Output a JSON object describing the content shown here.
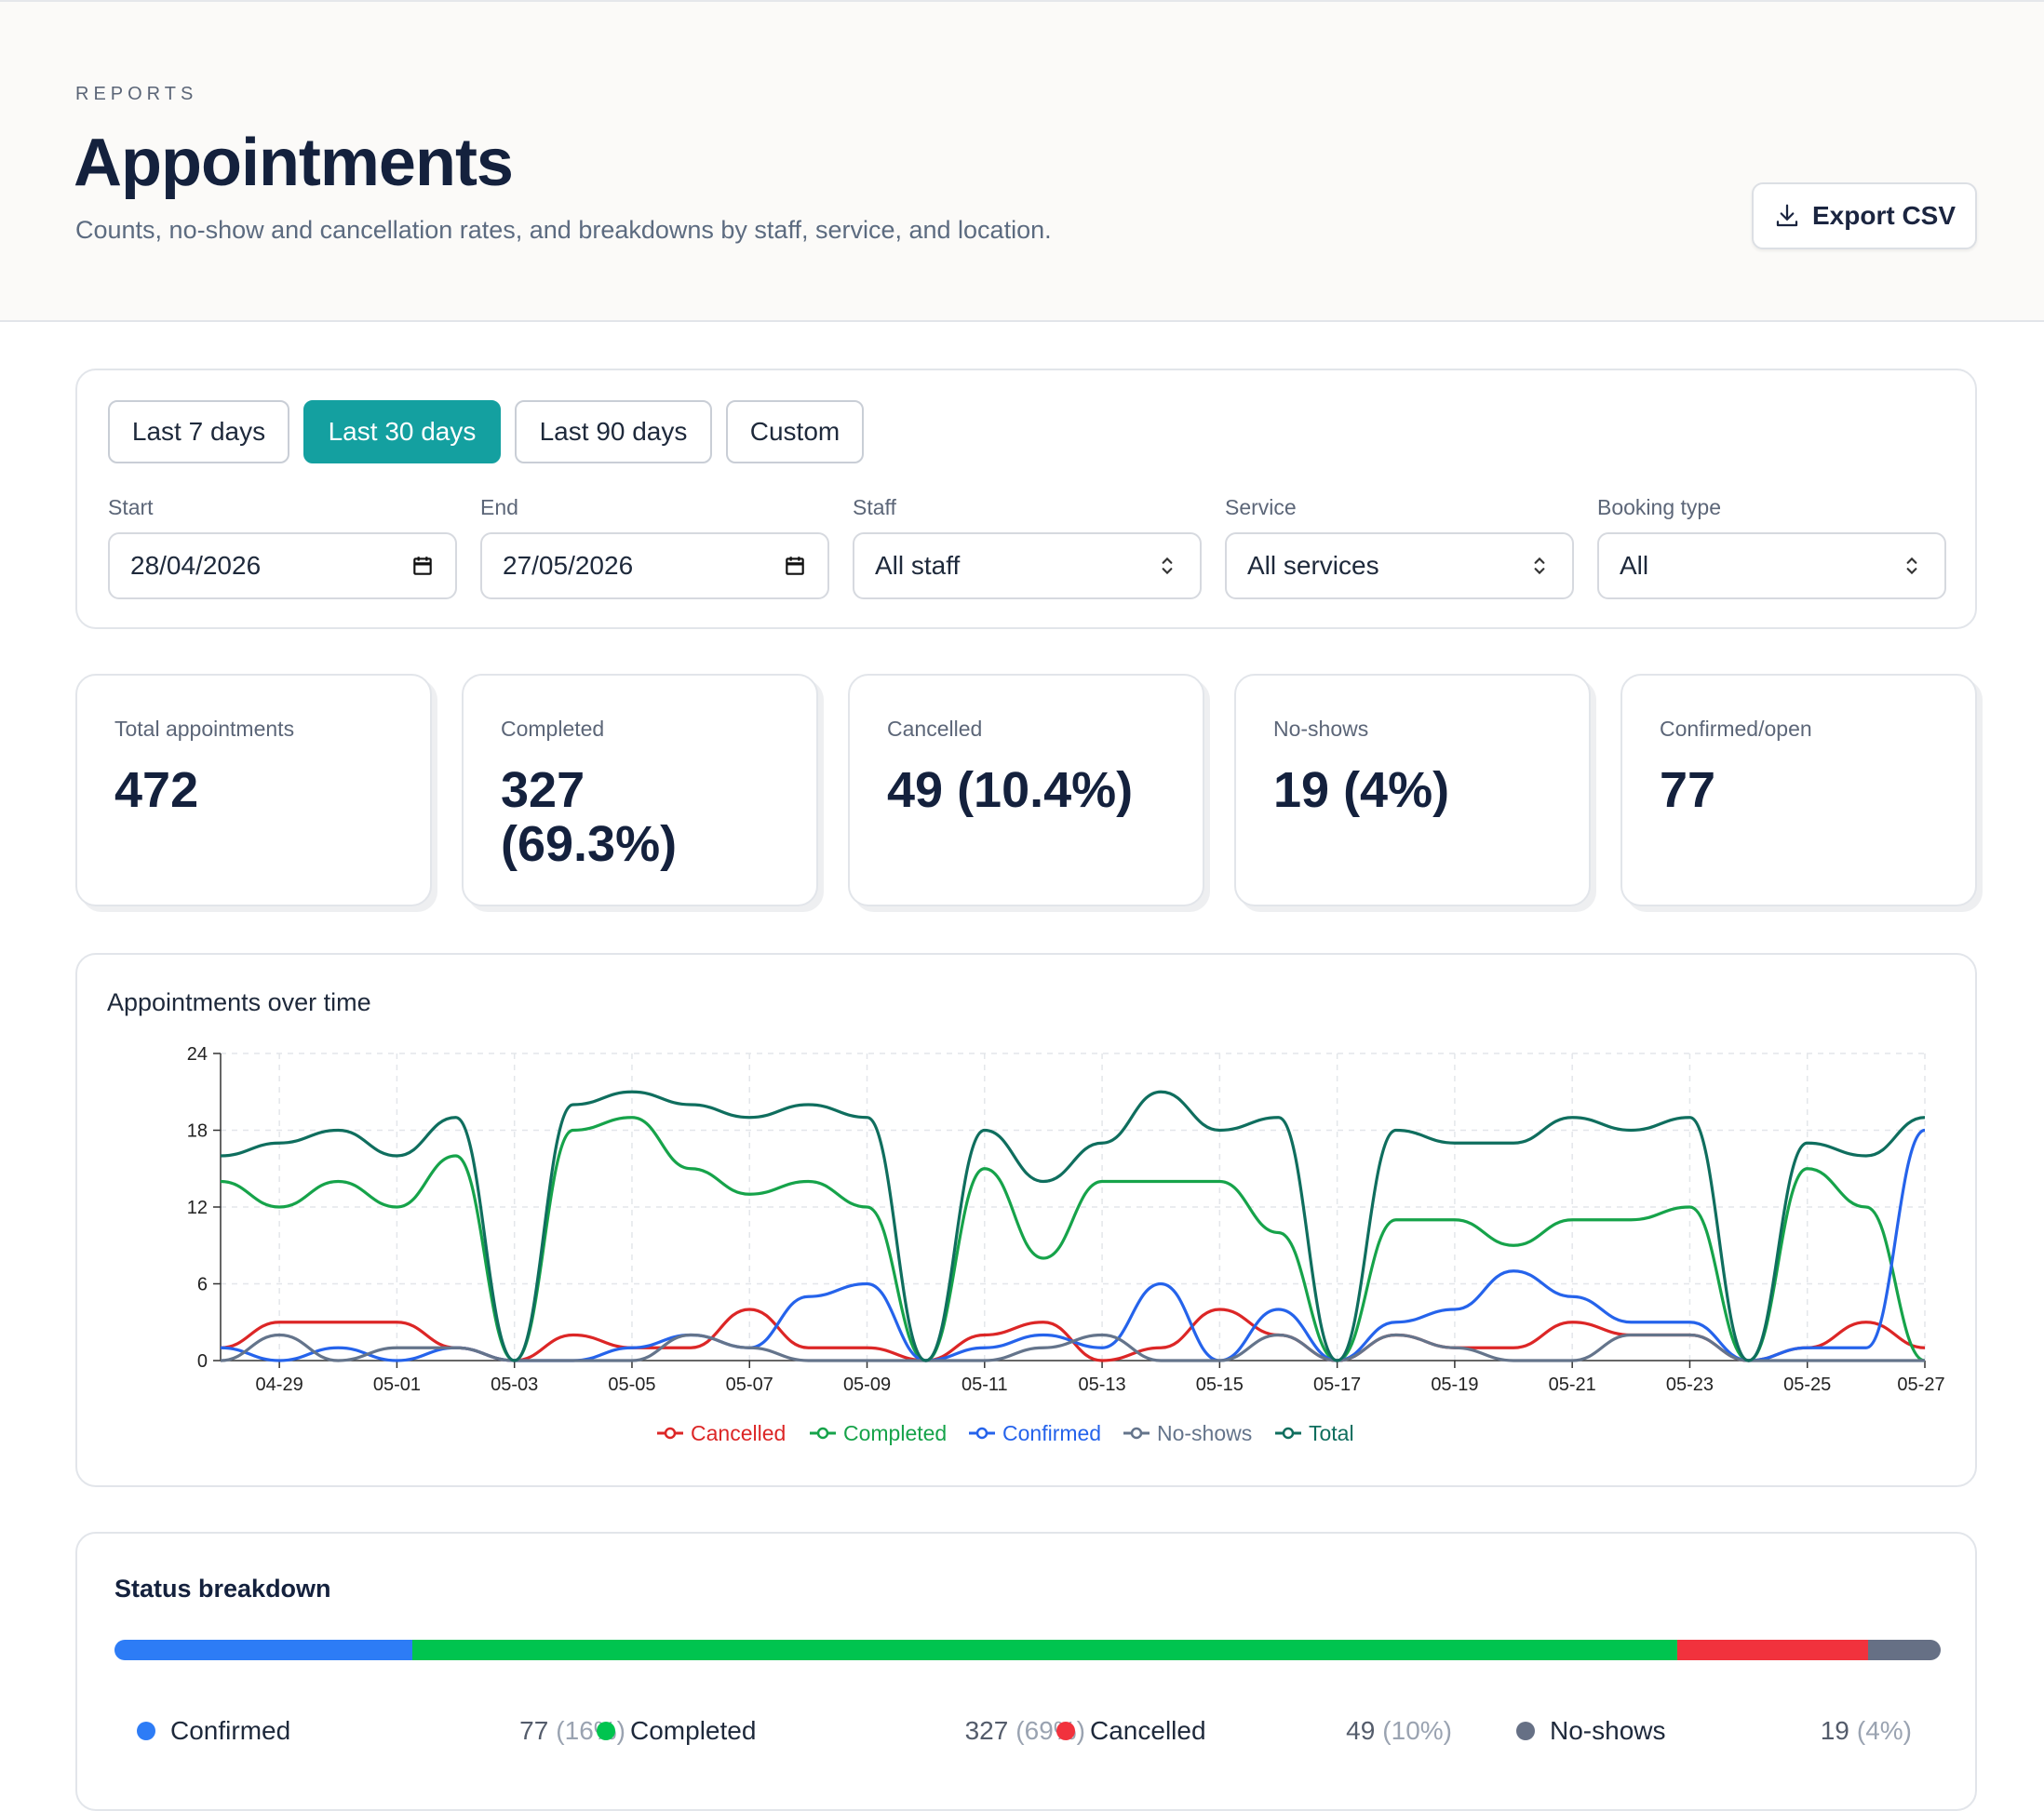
{
  "header": {
    "eyebrow": "REPORTS",
    "title": "Appointments",
    "subtitle": "Counts, no-show and cancellation rates, and breakdowns by staff, service, and location.",
    "export_label": "Export CSV"
  },
  "filters": {
    "ranges": [
      {
        "label": "Last 7 days",
        "active": false
      },
      {
        "label": "Last 30 days",
        "active": true
      },
      {
        "label": "Last 90 days",
        "active": false
      },
      {
        "label": "Custom",
        "active": false
      }
    ],
    "start_label": "Start",
    "start_value": "28/04/2026",
    "end_label": "End",
    "end_value": "27/05/2026",
    "staff_label": "Staff",
    "staff_value": "All staff",
    "service_label": "Service",
    "service_value": "All services",
    "booking_label": "Booking type",
    "booking_value": "All"
  },
  "stats": [
    {
      "label": "Total appointments",
      "value": "472"
    },
    {
      "label": "Completed",
      "value": "327 (69.3%)"
    },
    {
      "label": "Cancelled",
      "value": "49 (10.4%)"
    },
    {
      "label": "No-shows",
      "value": "19 (4%)"
    },
    {
      "label": "Confirmed/open",
      "value": "77"
    }
  ],
  "chart": {
    "title": "Appointments over time"
  },
  "chart_data": {
    "type": "line",
    "x": [
      "04-28",
      "04-29",
      "04-30",
      "05-01",
      "05-02",
      "05-03",
      "05-04",
      "05-05",
      "05-06",
      "05-07",
      "05-08",
      "05-09",
      "05-10",
      "05-11",
      "05-12",
      "05-13",
      "05-14",
      "05-15",
      "05-16",
      "05-17",
      "05-18",
      "05-19",
      "05-20",
      "05-21",
      "05-22",
      "05-23",
      "05-24",
      "05-25",
      "05-26",
      "05-27"
    ],
    "x_tick_labels": [
      "04-29",
      "05-01",
      "05-03",
      "05-05",
      "05-07",
      "05-09",
      "05-11",
      "05-13",
      "05-15",
      "05-17",
      "05-19",
      "05-21",
      "05-23",
      "05-25",
      "05-27"
    ],
    "ylim": [
      0,
      24
    ],
    "yticks": [
      0,
      6,
      12,
      18,
      24
    ],
    "grid": true,
    "legend_position": "bottom",
    "series": [
      {
        "name": "Cancelled",
        "color": "#dc2626",
        "values": [
          1,
          3,
          3,
          3,
          1,
          0,
          2,
          1,
          1,
          4,
          1,
          1,
          0,
          2,
          3,
          0,
          1,
          4,
          2,
          0,
          2,
          1,
          1,
          3,
          2,
          2,
          0,
          1,
          3,
          1
        ]
      },
      {
        "name": "Completed",
        "color": "#16a34a",
        "values": [
          14,
          12,
          14,
          12,
          16,
          0,
          18,
          19,
          15,
          13,
          14,
          12,
          0,
          15,
          8,
          14,
          14,
          14,
          10,
          0,
          11,
          11,
          9,
          11,
          11,
          12,
          0,
          15,
          12,
          0
        ]
      },
      {
        "name": "Confirmed",
        "color": "#2563eb",
        "values": [
          1,
          0,
          1,
          0,
          1,
          0,
          0,
          1,
          2,
          1,
          5,
          6,
          0,
          1,
          2,
          1,
          6,
          0,
          4,
          0,
          3,
          4,
          7,
          5,
          3,
          3,
          0,
          1,
          1,
          18
        ]
      },
      {
        "name": "No-shows",
        "color": "#64748b",
        "values": [
          0,
          2,
          0,
          1,
          1,
          0,
          0,
          0,
          2,
          1,
          0,
          0,
          0,
          0,
          1,
          2,
          0,
          0,
          2,
          0,
          2,
          1,
          0,
          0,
          2,
          2,
          0,
          0,
          0,
          0
        ]
      },
      {
        "name": "Total",
        "color": "#0f6e5e",
        "values": [
          16,
          17,
          18,
          16,
          19,
          0,
          20,
          21,
          20,
          19,
          20,
          19,
          0,
          18,
          14,
          17,
          21,
          18,
          19,
          0,
          18,
          17,
          17,
          19,
          18,
          19,
          0,
          17,
          16,
          19
        ]
      }
    ]
  },
  "status": {
    "title": "Status breakdown",
    "items": [
      {
        "label": "Confirmed",
        "value": "77",
        "pct": "(16%)",
        "color": "#2d7cf6",
        "fraction": 0.163
      },
      {
        "label": "Completed",
        "value": "327",
        "pct": "(69%)",
        "color": "#00c44f",
        "fraction": 0.693
      },
      {
        "label": "Cancelled",
        "value": "49",
        "pct": "(10%)",
        "color": "#f1323d",
        "fraction": 0.104
      },
      {
        "label": "No-shows",
        "value": "19",
        "pct": "(4%)",
        "color": "#667085",
        "fraction": 0.04
      }
    ]
  }
}
